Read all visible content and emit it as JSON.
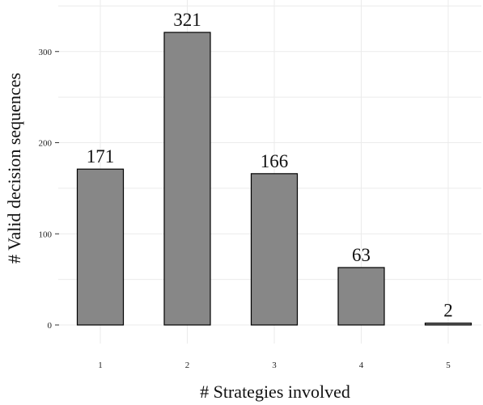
{
  "chart_data": {
    "type": "bar",
    "categories": [
      "1",
      "2",
      "3",
      "4",
      "5"
    ],
    "values": [
      171,
      321,
      166,
      63,
      2
    ],
    "data_labels": [
      "171",
      "321",
      "166",
      "63",
      "2"
    ],
    "title": "",
    "xlabel": "# Strategies involved",
    "ylabel": "# Valid decision sequences",
    "ylim": [
      0,
      350
    ],
    "yticks": [
      0,
      100,
      200,
      300
    ],
    "ytick_labels": [
      "0",
      "100",
      "200",
      "300"
    ],
    "grid": true,
    "bar_color": "#878787",
    "bar_edge_color": "#000000"
  }
}
